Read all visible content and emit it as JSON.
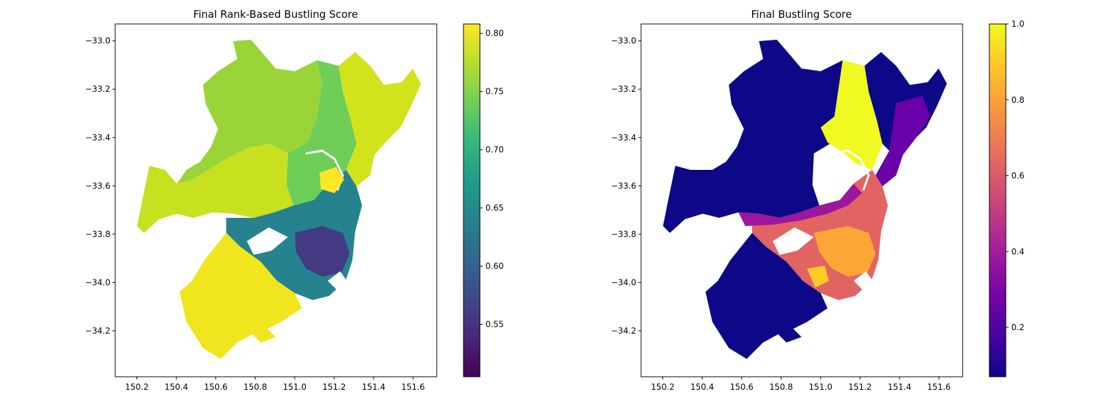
{
  "figure": {
    "panels": [
      {
        "title": "Final Rank-Based Bustling Score",
        "colormap": "viridis",
        "xticks": [
          "150.2",
          "150.4",
          "150.6",
          "150.8",
          "151.0",
          "151.2",
          "151.4",
          "151.6"
        ],
        "xtick_values": [
          150.2,
          150.4,
          150.6,
          150.8,
          151.0,
          151.2,
          151.4,
          151.6
        ],
        "yticks": [
          "−33.0",
          "−33.2",
          "−33.4",
          "−33.6",
          "−33.8",
          "−34.0",
          "−34.2"
        ],
        "ytick_values": [
          -33.0,
          -33.2,
          -33.4,
          -33.6,
          -33.8,
          -34.0,
          -34.2
        ],
        "colorbar": {
          "min": 0.505,
          "max": 0.808,
          "ticks": [
            "0.55",
            "0.60",
            "0.65",
            "0.70",
            "0.75",
            "0.80"
          ],
          "tick_values": [
            0.55,
            0.6,
            0.65,
            0.7,
            0.75,
            0.8
          ],
          "colors": [
            "#440154",
            "#482878",
            "#3e4989",
            "#31688e",
            "#26828e",
            "#1f9e89",
            "#35b779",
            "#6ece58",
            "#b5de2b",
            "#fde725"
          ]
        }
      },
      {
        "title": "Final Bustling Score",
        "colormap": "plasma",
        "xticks": [
          "150.2",
          "150.4",
          "150.6",
          "150.8",
          "151.0",
          "151.2",
          "151.4",
          "151.6"
        ],
        "xtick_values": [
          150.2,
          150.4,
          150.6,
          150.8,
          151.0,
          151.2,
          151.4,
          151.6
        ],
        "yticks": [
          "−33.0",
          "−33.2",
          "−33.4",
          "−33.6",
          "−33.8",
          "−34.0",
          "−34.2"
        ],
        "ytick_values": [
          -33.0,
          -33.2,
          -33.4,
          -33.6,
          -33.8,
          -34.0,
          -34.2
        ],
        "colorbar": {
          "min": 0.07,
          "max": 1.0,
          "ticks": [
            "0.2",
            "0.4",
            "0.6",
            "0.8",
            "1.0"
          ],
          "tick_values": [
            0.2,
            0.4,
            0.6,
            0.8,
            1.0
          ],
          "colors": [
            "#0d0887",
            "#46039f",
            "#7201a8",
            "#9c179e",
            "#bd3786",
            "#d8576b",
            "#ed7953",
            "#fb9f3a",
            "#fdca26",
            "#f0f921"
          ]
        }
      }
    ],
    "map_region_scores": {
      "left": {
        "north_west": 0.76,
        "north_central_east": 0.73,
        "north_east_coast": 0.8,
        "west_basin": 0.79,
        "inner_suburbs": 0.62,
        "south_west": 0.8
      },
      "right": {
        "north_west": 0.1,
        "north_central": 1.0,
        "north_east_coast": 0.25,
        "inner_suburbs": 0.72,
        "south_west": 0.12
      }
    }
  }
}
